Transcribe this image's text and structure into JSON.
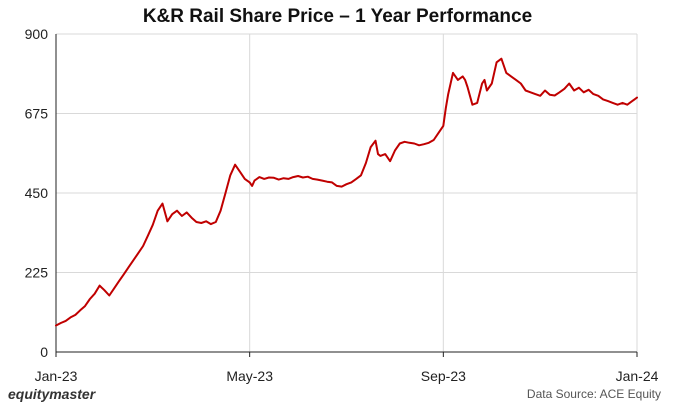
{
  "chart_data": {
    "type": "line",
    "title": "K&R Rail Share Price – 1 Year Performance",
    "xlabel": "",
    "ylabel": "",
    "ylim": [
      0,
      900
    ],
    "yticks": [
      0,
      225,
      450,
      675,
      900
    ],
    "xtick_labels": [
      "Jan-23",
      "May-23",
      "Sep-23",
      "Jan-24"
    ],
    "x_range_months": [
      0,
      12
    ],
    "xtick_positions_months": [
      0,
      4,
      8,
      12
    ],
    "grid": true,
    "colors": {
      "line": "#c00000",
      "grid": "#d9d9d9",
      "axis": "#222222"
    },
    "series": [
      {
        "name": "K&R Rail",
        "x": [
          0,
          0.1,
          0.2,
          0.3,
          0.4,
          0.5,
          0.6,
          0.7,
          0.8,
          0.9,
          1.0,
          1.1,
          1.2,
          1.3,
          1.4,
          1.5,
          1.6,
          1.7,
          1.8,
          1.9,
          2.0,
          2.1,
          2.2,
          2.3,
          2.4,
          2.5,
          2.6,
          2.7,
          2.8,
          2.9,
          3.0,
          3.1,
          3.2,
          3.3,
          3.4,
          3.5,
          3.6,
          3.7,
          3.8,
          3.9,
          4.0,
          4.05,
          4.1,
          4.2,
          4.3,
          4.4,
          4.5,
          4.6,
          4.7,
          4.8,
          4.9,
          5.0,
          5.1,
          5.2,
          5.3,
          5.4,
          5.5,
          5.6,
          5.7,
          5.8,
          5.9,
          6.0,
          6.1,
          6.2,
          6.3,
          6.4,
          6.5,
          6.6,
          6.65,
          6.7,
          6.8,
          6.9,
          7.0,
          7.1,
          7.2,
          7.3,
          7.4,
          7.5,
          7.6,
          7.7,
          7.8,
          7.9,
          8.0,
          8.05,
          8.1,
          8.15,
          8.2,
          8.3,
          8.4,
          8.45,
          8.5,
          8.6,
          8.7,
          8.8,
          8.85,
          8.9,
          9.0,
          9.1,
          9.2,
          9.3,
          9.4,
          9.5,
          9.6,
          9.7,
          9.8,
          9.9,
          10.0,
          10.1,
          10.2,
          10.3,
          10.4,
          10.5,
          10.6,
          10.7,
          10.8,
          10.9,
          11.0,
          11.1,
          11.2,
          11.3,
          11.4,
          11.5,
          11.6,
          11.7,
          11.8,
          11.9,
          12.0
        ],
        "values": [
          75,
          82,
          88,
          98,
          105,
          118,
          130,
          150,
          165,
          188,
          175,
          160,
          180,
          200,
          220,
          240,
          260,
          280,
          300,
          330,
          360,
          400,
          420,
          370,
          390,
          400,
          385,
          395,
          380,
          368,
          365,
          370,
          362,
          368,
          400,
          450,
          500,
          530,
          510,
          490,
          480,
          470,
          485,
          495,
          490,
          494,
          493,
          488,
          492,
          490,
          495,
          498,
          494,
          496,
          490,
          488,
          485,
          482,
          480,
          470,
          468,
          475,
          480,
          490,
          500,
          535,
          580,
          598,
          560,
          555,
          560,
          540,
          570,
          590,
          595,
          592,
          590,
          585,
          588,
          592,
          600,
          620,
          640,
          690,
          730,
          760,
          790,
          770,
          780,
          770,
          750,
          700,
          705,
          760,
          770,
          740,
          760,
          820,
          830,
          790,
          780,
          770,
          760,
          740,
          735,
          730,
          725,
          740,
          728,
          726,
          735,
          745,
          760,
          740,
          748,
          735,
          742,
          730,
          725,
          715,
          710,
          705,
          700,
          705,
          700,
          710,
          720
        ]
      }
    ]
  },
  "footer": {
    "brand": "equitymaster",
    "source": "Data Source: ACE Equity"
  }
}
